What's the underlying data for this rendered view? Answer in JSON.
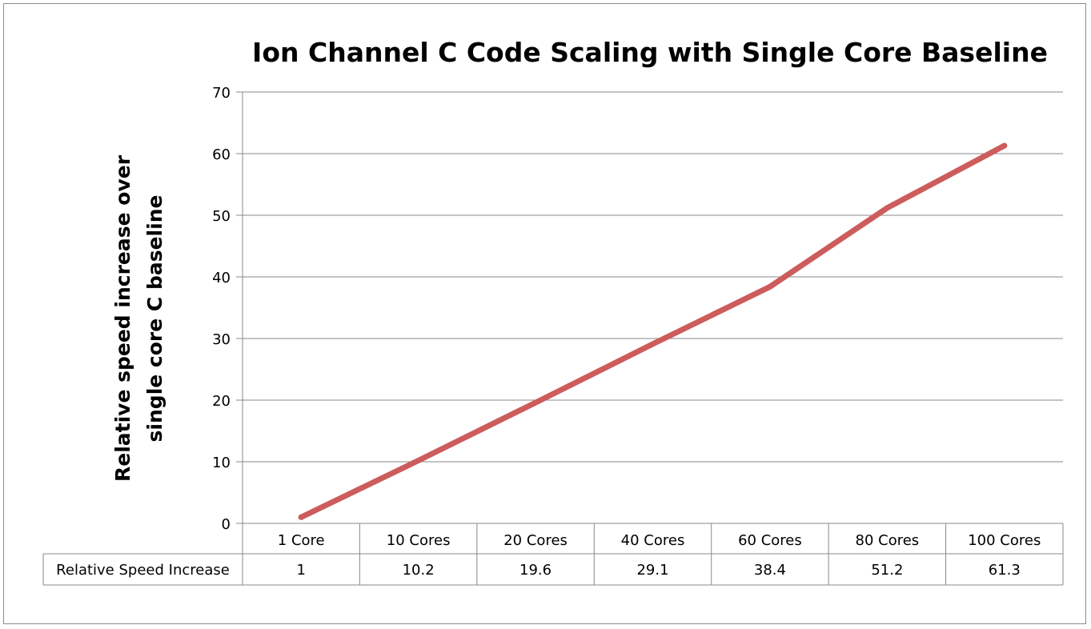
{
  "chart_data": {
    "type": "line",
    "title": "Ion Channel C Code Scaling with Single Core Baseline",
    "ylabel": [
      "Relative speed increase over",
      "single core C baseline"
    ],
    "xlabel": "",
    "categories": [
      "1 Core",
      "10 Cores",
      "20 Cores",
      "40 Cores",
      "60 Cores",
      "80 Cores",
      "100 Cores"
    ],
    "series": [
      {
        "name": "Relative Speed Increase",
        "values": [
          1,
          10.2,
          19.6,
          29.1,
          38.4,
          51.2,
          61.3
        ],
        "labels": [
          "1",
          "10.2",
          "19.6",
          "29.1",
          "38.4",
          "51.2",
          "61.3"
        ]
      }
    ],
    "ylim": [
      0,
      70
    ],
    "yticks": [
      0,
      10,
      20,
      30,
      40,
      50,
      60,
      70
    ],
    "grid": true,
    "legend": "data-table-below",
    "colors": {
      "line": "#cd5c5c",
      "grid": "#888888",
      "axis": "#888888"
    }
  }
}
